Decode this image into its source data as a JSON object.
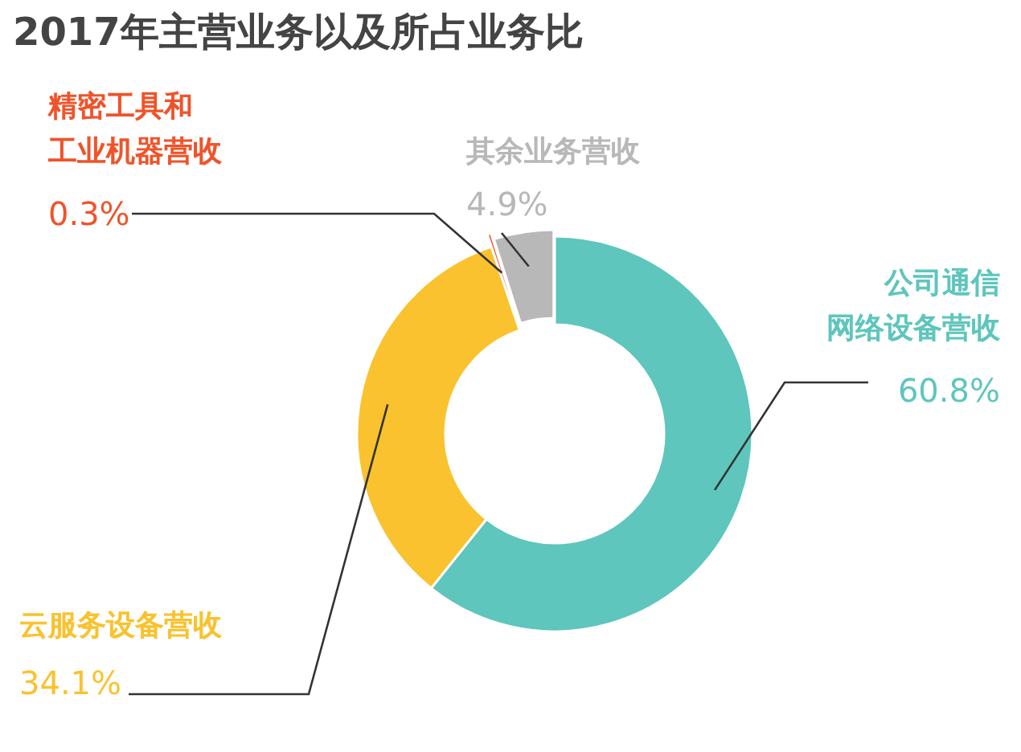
{
  "chart_data": {
    "type": "donut",
    "title": "2017年主营业务以及所占业务比",
    "categories": [
      "公司通信网络设备营收",
      "云服务设备营收",
      "精密工具和工业机器营收",
      "其余业务营收"
    ],
    "values": [
      60.8,
      34.1,
      0.3,
      4.9
    ],
    "value_labels": [
      "60.8%",
      "34.1%",
      "0.3%",
      "4.9%"
    ],
    "colors": [
      "#5ec6bc",
      "#f9c22e",
      "#f0532a",
      "#b8b8b8"
    ]
  }
}
